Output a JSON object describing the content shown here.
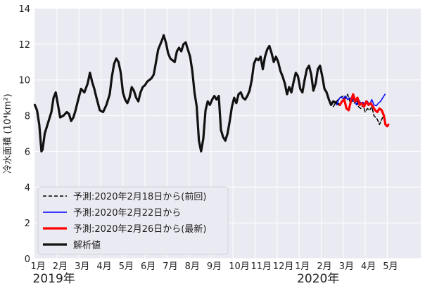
{
  "chart_data": {
    "type": "line",
    "ylabel": "冷水面積 (10⁴km²)",
    "ylim": [
      0,
      14
    ],
    "yticks": [
      0,
      2,
      4,
      6,
      8,
      10,
      12,
      14
    ],
    "xlim": [
      0,
      17.2
    ],
    "month_ticks": [
      {
        "x": 0,
        "label": "1月"
      },
      {
        "x": 1,
        "label": "2月"
      },
      {
        "x": 2,
        "label": "3月"
      },
      {
        "x": 3,
        "label": "4月"
      },
      {
        "x": 4,
        "label": "5月"
      },
      {
        "x": 5,
        "label": "6月"
      },
      {
        "x": 6,
        "label": "7月"
      },
      {
        "x": 7,
        "label": "8月"
      },
      {
        "x": 8,
        "label": "9月"
      },
      {
        "x": 9,
        "label": "10月"
      },
      {
        "x": 10,
        "label": "11月"
      },
      {
        "x": 11,
        "label": "12月"
      },
      {
        "x": 12,
        "label": "1月"
      },
      {
        "x": 13,
        "label": "2月"
      },
      {
        "x": 14,
        "label": "3月"
      },
      {
        "x": 15,
        "label": "4月"
      },
      {
        "x": 16,
        "label": "5月"
      }
    ],
    "years": [
      {
        "x": 0,
        "label": "2019年"
      },
      {
        "x": 12,
        "label": "2020年"
      }
    ],
    "grid": true,
    "legend_position": "bottom-left",
    "series": [
      {
        "name": "予測:2020年2月18日から(前回)",
        "color": "#000000",
        "style": "dashed",
        "width": 1.5,
        "points": [
          [
            13.55,
            8.5
          ],
          [
            13.7,
            8.8
          ],
          [
            13.85,
            9.0
          ],
          [
            14.0,
            9.1
          ],
          [
            14.1,
            8.95
          ],
          [
            14.2,
            9.2
          ],
          [
            14.3,
            8.8
          ],
          [
            14.4,
            8.95
          ],
          [
            14.5,
            8.7
          ],
          [
            14.6,
            8.9
          ],
          [
            14.7,
            8.5
          ],
          [
            14.8,
            8.4
          ],
          [
            14.9,
            8.6
          ],
          [
            15.0,
            8.2
          ],
          [
            15.1,
            8.4
          ],
          [
            15.2,
            8.3
          ],
          [
            15.3,
            8.5
          ],
          [
            15.4,
            8.0
          ],
          [
            15.55,
            7.8
          ],
          [
            15.65,
            7.5
          ],
          [
            15.75,
            7.8
          ],
          [
            15.85,
            8.0
          ]
        ]
      },
      {
        "name": "予測:2020年2月22日から",
        "color": "#0000ff",
        "style": "solid",
        "width": 1.5,
        "points": [
          [
            13.7,
            8.6
          ],
          [
            13.8,
            8.9
          ],
          [
            13.9,
            9.05
          ],
          [
            14.0,
            8.95
          ],
          [
            14.1,
            9.1
          ],
          [
            14.2,
            8.9
          ],
          [
            14.3,
            9.0
          ],
          [
            14.4,
            8.8
          ],
          [
            14.5,
            9.0
          ],
          [
            14.6,
            8.6
          ],
          [
            14.7,
            8.9
          ],
          [
            14.8,
            8.7
          ],
          [
            14.9,
            8.75
          ],
          [
            15.0,
            8.6
          ],
          [
            15.1,
            8.8
          ],
          [
            15.2,
            8.6
          ],
          [
            15.3,
            8.9
          ],
          [
            15.4,
            8.6
          ],
          [
            15.5,
            8.55
          ],
          [
            15.6,
            8.7
          ],
          [
            15.7,
            8.8
          ],
          [
            15.8,
            9.0
          ],
          [
            15.9,
            9.2
          ]
        ]
      },
      {
        "name": "予測:2020年2月26日から(最新)",
        "color": "#ff0000",
        "style": "solid",
        "width": 3.2,
        "points": [
          [
            13.85,
            8.6
          ],
          [
            13.95,
            8.8
          ],
          [
            14.05,
            8.9
          ],
          [
            14.15,
            8.4
          ],
          [
            14.25,
            8.3
          ],
          [
            14.35,
            8.8
          ],
          [
            14.45,
            9.2
          ],
          [
            14.55,
            8.8
          ],
          [
            14.65,
            9.0
          ],
          [
            14.75,
            8.6
          ],
          [
            14.85,
            8.7
          ],
          [
            14.95,
            8.5
          ],
          [
            15.05,
            8.8
          ],
          [
            15.15,
            8.6
          ],
          [
            15.25,
            8.7
          ],
          [
            15.35,
            8.5
          ],
          [
            15.45,
            8.3
          ],
          [
            15.55,
            8.2
          ],
          [
            15.65,
            8.4
          ],
          [
            15.75,
            8.3
          ],
          [
            15.85,
            8.0
          ],
          [
            15.92,
            7.5
          ],
          [
            16.0,
            7.4
          ],
          [
            16.05,
            7.5
          ]
        ]
      },
      {
        "name": "解析値",
        "color": "#111111",
        "style": "solid",
        "width": 3.2,
        "points": [
          [
            0.0,
            8.6
          ],
          [
            0.1,
            8.3
          ],
          [
            0.2,
            7.5
          ],
          [
            0.3,
            6.0
          ],
          [
            0.35,
            6.1
          ],
          [
            0.45,
            7.0
          ],
          [
            0.6,
            7.6
          ],
          [
            0.75,
            8.2
          ],
          [
            0.85,
            9.0
          ],
          [
            0.95,
            9.3
          ],
          [
            1.05,
            8.6
          ],
          [
            1.15,
            7.9
          ],
          [
            1.3,
            8.0
          ],
          [
            1.45,
            8.2
          ],
          [
            1.55,
            8.1
          ],
          [
            1.65,
            7.7
          ],
          [
            1.75,
            7.9
          ],
          [
            1.85,
            8.3
          ],
          [
            1.95,
            8.8
          ],
          [
            2.1,
            9.5
          ],
          [
            2.25,
            9.3
          ],
          [
            2.4,
            9.8
          ],
          [
            2.5,
            10.4
          ],
          [
            2.6,
            9.9
          ],
          [
            2.7,
            9.5
          ],
          [
            2.8,
            9.0
          ],
          [
            2.95,
            8.3
          ],
          [
            3.1,
            8.2
          ],
          [
            3.25,
            8.6
          ],
          [
            3.4,
            9.2
          ],
          [
            3.5,
            10.2
          ],
          [
            3.6,
            10.9
          ],
          [
            3.7,
            11.2
          ],
          [
            3.8,
            11.0
          ],
          [
            3.9,
            10.4
          ],
          [
            4.0,
            9.3
          ],
          [
            4.1,
            8.9
          ],
          [
            4.2,
            8.7
          ],
          [
            4.3,
            9.0
          ],
          [
            4.4,
            9.6
          ],
          [
            4.5,
            9.4
          ],
          [
            4.6,
            9.0
          ],
          [
            4.7,
            8.8
          ],
          [
            4.8,
            9.3
          ],
          [
            4.9,
            9.6
          ],
          [
            5.0,
            9.7
          ],
          [
            5.1,
            9.9
          ],
          [
            5.2,
            10.0
          ],
          [
            5.3,
            10.1
          ],
          [
            5.4,
            10.3
          ],
          [
            5.5,
            11.0
          ],
          [
            5.6,
            11.7
          ],
          [
            5.7,
            12.0
          ],
          [
            5.8,
            12.3
          ],
          [
            5.85,
            12.5
          ],
          [
            5.95,
            12.1
          ],
          [
            6.05,
            11.5
          ],
          [
            6.15,
            11.2
          ],
          [
            6.25,
            11.1
          ],
          [
            6.35,
            11.0
          ],
          [
            6.45,
            11.6
          ],
          [
            6.55,
            11.8
          ],
          [
            6.65,
            11.6
          ],
          [
            6.75,
            12.0
          ],
          [
            6.85,
            12.1
          ],
          [
            6.95,
            11.7
          ],
          [
            7.05,
            11.3
          ],
          [
            7.15,
            10.5
          ],
          [
            7.25,
            9.3
          ],
          [
            7.35,
            8.5
          ],
          [
            7.45,
            6.6
          ],
          [
            7.55,
            6.0
          ],
          [
            7.65,
            6.7
          ],
          [
            7.75,
            8.3
          ],
          [
            7.85,
            8.8
          ],
          [
            7.95,
            8.6
          ],
          [
            8.05,
            8.9
          ],
          [
            8.15,
            9.1
          ],
          [
            8.25,
            8.9
          ],
          [
            8.35,
            9.1
          ],
          [
            8.45,
            7.2
          ],
          [
            8.55,
            6.8
          ],
          [
            8.65,
            6.6
          ],
          [
            8.75,
            7.0
          ],
          [
            8.85,
            7.7
          ],
          [
            8.95,
            8.5
          ],
          [
            9.05,
            9.0
          ],
          [
            9.15,
            8.7
          ],
          [
            9.25,
            9.2
          ],
          [
            9.35,
            9.3
          ],
          [
            9.45,
            9.0
          ],
          [
            9.55,
            8.9
          ],
          [
            9.65,
            9.1
          ],
          [
            9.75,
            9.4
          ],
          [
            9.85,
            10.0
          ],
          [
            9.95,
            10.9
          ],
          [
            10.05,
            11.2
          ],
          [
            10.15,
            11.1
          ],
          [
            10.25,
            11.3
          ],
          [
            10.35,
            10.6
          ],
          [
            10.45,
            11.3
          ],
          [
            10.55,
            11.7
          ],
          [
            10.65,
            11.9
          ],
          [
            10.75,
            11.5
          ],
          [
            10.85,
            11.0
          ],
          [
            10.95,
            11.3
          ],
          [
            11.05,
            11.0
          ],
          [
            11.15,
            10.5
          ],
          [
            11.25,
            10.2
          ],
          [
            11.35,
            9.8
          ],
          [
            11.45,
            9.2
          ],
          [
            11.55,
            9.6
          ],
          [
            11.65,
            9.3
          ],
          [
            11.75,
            9.9
          ],
          [
            11.85,
            10.4
          ],
          [
            11.95,
            10.2
          ],
          [
            12.05,
            9.5
          ],
          [
            12.15,
            9.3
          ],
          [
            12.25,
            10.0
          ],
          [
            12.35,
            10.6
          ],
          [
            12.45,
            10.8
          ],
          [
            12.55,
            10.3
          ],
          [
            12.65,
            9.4
          ],
          [
            12.75,
            9.8
          ],
          [
            12.85,
            10.6
          ],
          [
            12.95,
            10.8
          ],
          [
            13.05,
            10.2
          ],
          [
            13.15,
            9.5
          ],
          [
            13.25,
            9.3
          ],
          [
            13.35,
            8.9
          ],
          [
            13.45,
            8.6
          ],
          [
            13.55,
            8.8
          ],
          [
            13.7,
            8.7
          ],
          [
            13.85,
            8.6
          ]
        ]
      }
    ]
  }
}
